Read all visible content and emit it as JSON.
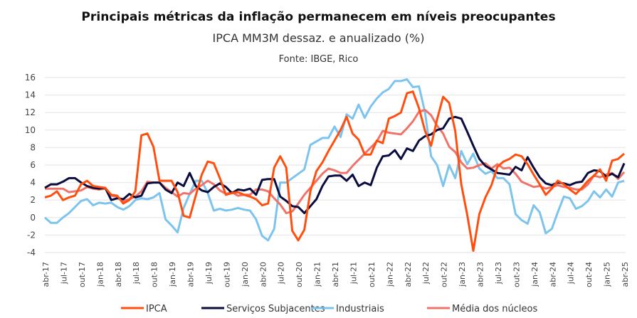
{
  "chart_data": {
    "type": "line",
    "title": "Principais métricas da inflação permanecem em níveis preocupantes",
    "subtitle": "IPCA MM3M dessaz. e anualizado (%)",
    "source": "Fonte: IBGE, Rico",
    "xlabel": "",
    "ylabel": "",
    "ylim": [
      -4,
      16
    ],
    "yticks": [
      16,
      14,
      12,
      10,
      8,
      6,
      4,
      2,
      0,
      -2,
      -4
    ],
    "grid": true,
    "legend_position": "bottom",
    "x_start": "abr-17",
    "x_end": "abr-25",
    "x_frequency": "monthly",
    "xtick_labels": [
      "abr-17",
      "jul-17",
      "out-17",
      "jan-18",
      "abr-18",
      "jul-18",
      "out-18",
      "jan-19",
      "abr-19",
      "jul-19",
      "out-19",
      "jan-20",
      "abr-20",
      "jul-20",
      "out-20",
      "jan-21",
      "abr-21",
      "jul-21",
      "out-21",
      "jan-22",
      "abr-22",
      "jul-22",
      "out-22",
      "jan-23",
      "abr-23",
      "jul-23",
      "out-23",
      "jan-24",
      "abr-24",
      "jul-24",
      "out-24",
      "jan-25",
      "abr-25"
    ],
    "series": [
      {
        "name": "IPCA",
        "color": "#FF4F0F",
        "values": [
          2.3,
          2.5,
          3.0,
          2.0,
          2.3,
          2.5,
          3.8,
          4.2,
          3.6,
          3.5,
          3.4,
          2.6,
          2.5,
          1.6,
          2.0,
          3.0,
          9.4,
          9.6,
          8.1,
          4.2,
          4.2,
          4.2,
          2.9,
          0.2,
          0.0,
          2.5,
          4.9,
          6.4,
          6.2,
          4.5,
          2.6,
          2.8,
          2.9,
          2.6,
          2.4,
          2.1,
          1.4,
          1.6,
          5.7,
          7.0,
          5.7,
          -1.5,
          -2.6,
          -1.4,
          3.0,
          5.3,
          6.3,
          7.6,
          8.8,
          10.0,
          11.5,
          9.6,
          8.9,
          7.2,
          7.2,
          8.8,
          8.5,
          11.3,
          11.6,
          12.0,
          14.2,
          14.4,
          12.5,
          9.9,
          8.2,
          11.2,
          13.8,
          13.1,
          9.9,
          3.8,
          0.3,
          -3.8,
          0.4,
          2.3,
          3.7,
          5.8,
          6.4,
          6.7,
          7.2,
          7.0,
          6.1,
          4.9,
          3.8,
          2.6,
          3.3,
          4.2,
          3.8,
          3.2,
          2.7,
          3.4,
          4.2,
          5.9,
          4.2,
          3.3,
          3.5,
          5.9,
          4.6
        ],
        "values_tail": [
          4.8,
          5.5,
          4.2,
          6.5,
          6.7,
          7.3
        ]
      }
    ]
  },
  "legend": [
    {
      "label": "IPCA",
      "color": "#FF4F0F"
    },
    {
      "label": "Serviços Subjacentes",
      "color": "#0B0C3E"
    },
    {
      "label": "Industriais",
      "color": "#7CC4EE"
    },
    {
      "label": "Média dos núcleos",
      "color": "#F0736A"
    }
  ]
}
